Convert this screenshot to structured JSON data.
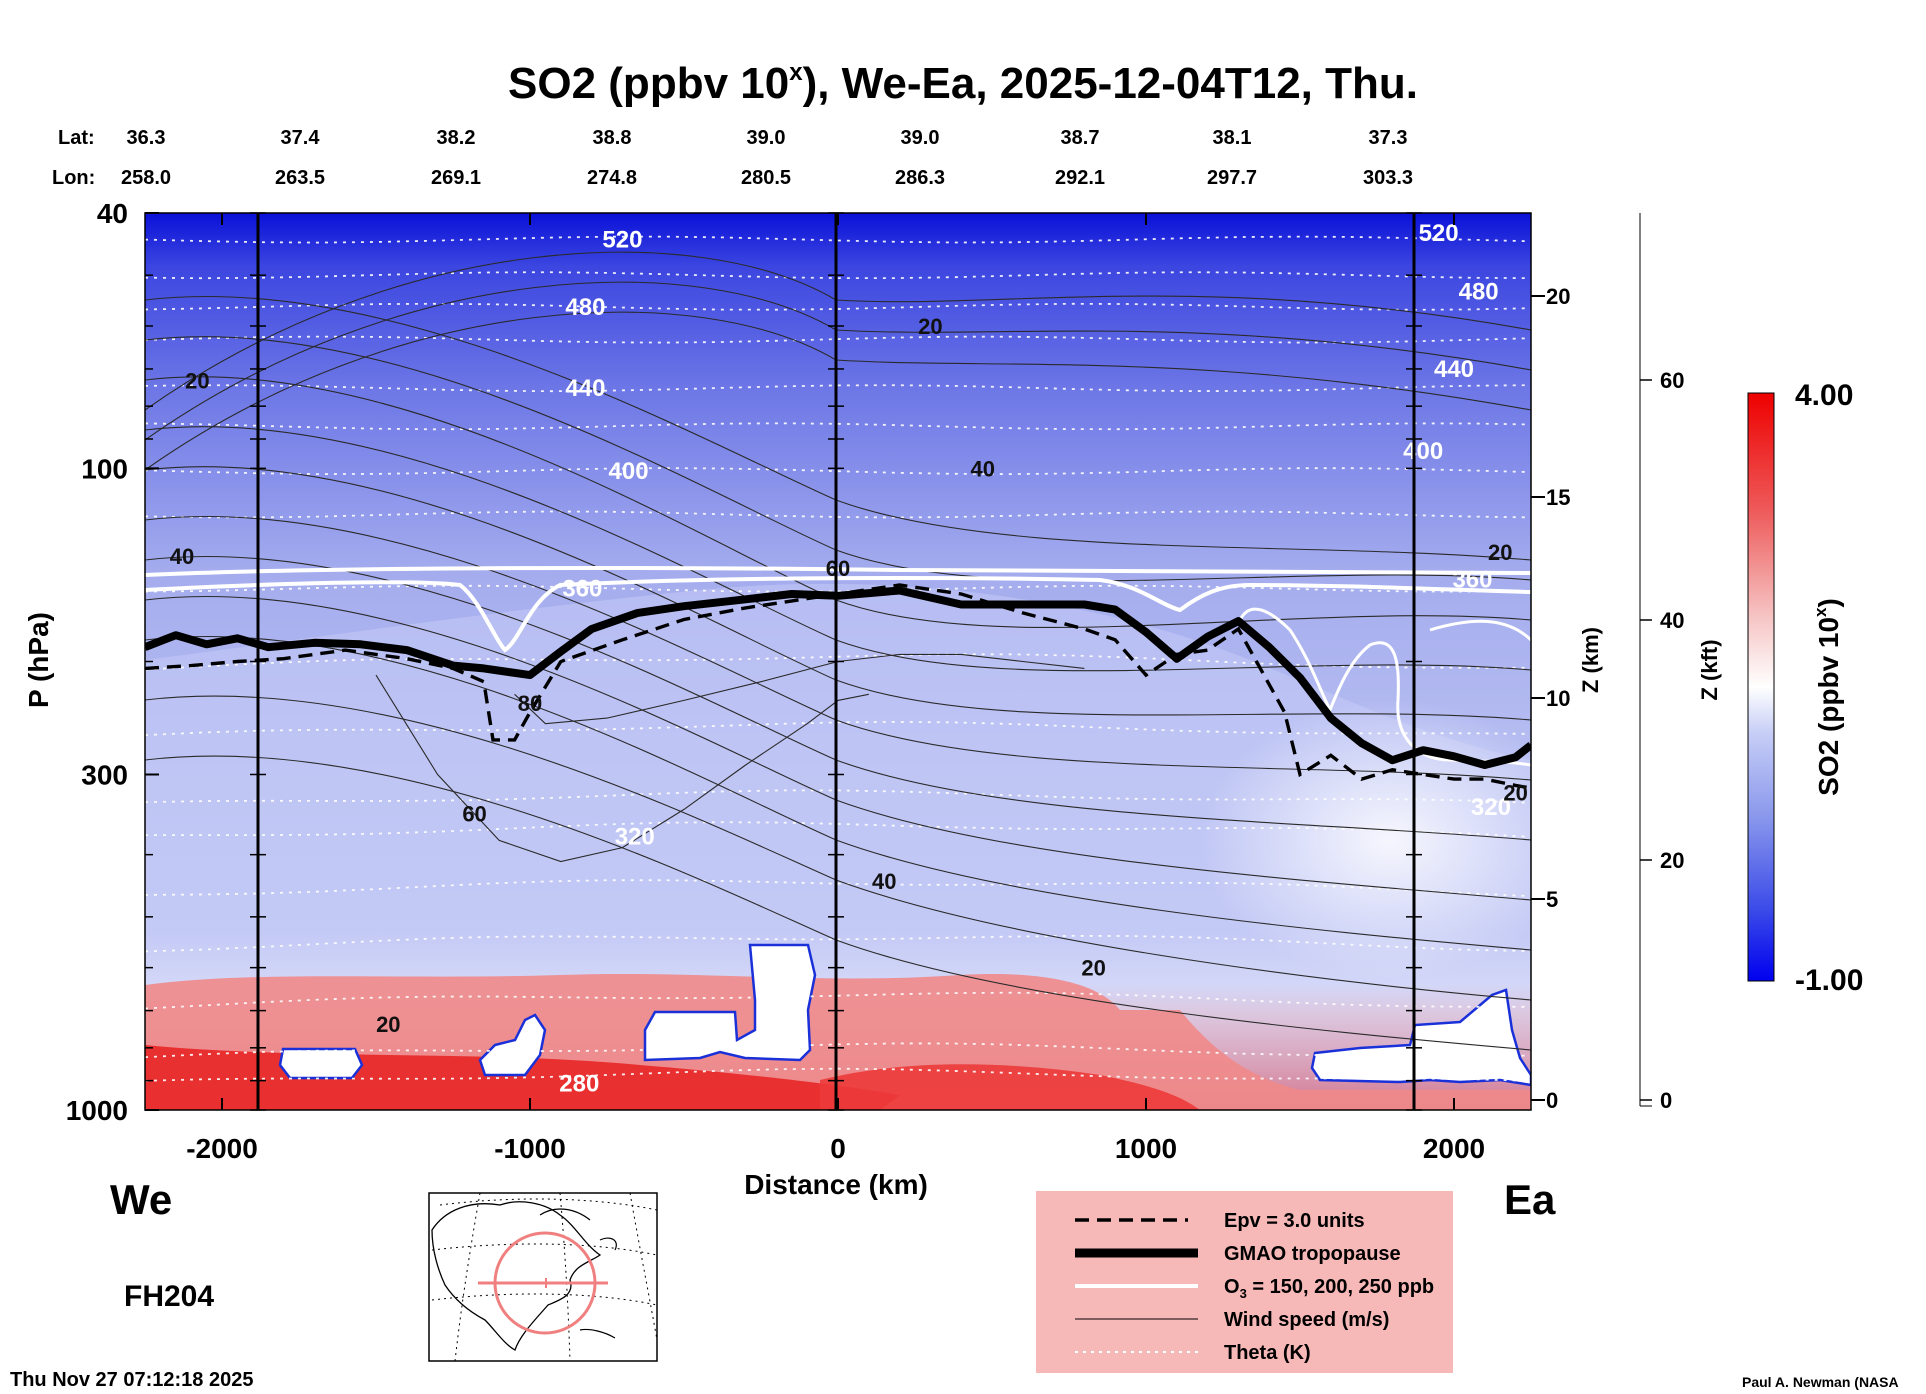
{
  "title_main": "SO2 (ppbv 10",
  "title_sup": "x",
  "title_rest": "), We-Ea, 2025-12-04T12, Thu.",
  "header": {
    "lat_label": "Lat:",
    "lon_label": "Lon:",
    "lats": [
      "36.3",
      "37.4",
      "38.2",
      "38.8",
      "39.0",
      "39.0",
      "38.7",
      "38.1",
      "37.3"
    ],
    "lons": [
      "258.0",
      "263.5",
      "269.1",
      "274.8",
      "280.5",
      "286.3",
      "292.1",
      "297.7",
      "303.3"
    ]
  },
  "direction_left": "We",
  "direction_right": "Ea",
  "forecast_hour": "FH204",
  "timestamp": "Thu Nov 27 07:12:18 2025",
  "credit": "Paul A. Newman (NASA",
  "chart_data": {
    "type": "heatmap",
    "title": "SO2 (ppbv 10^x), We-Ea, 2025-12-04T12, Thu.",
    "xlabel": "Distance (km)",
    "ylabel": "P (hPa)",
    "xlim": [
      -2250,
      2250
    ],
    "ylim": [
      1000,
      40
    ],
    "yscale": "log",
    "x_ticks": [
      -2000,
      -1000,
      0,
      1000,
      2000
    ],
    "x_tick_labels": [
      "-2000",
      "-1000",
      "0",
      "1000",
      "2000"
    ],
    "y_ticks": [
      40,
      100,
      300,
      1000
    ],
    "y_tick_labels": [
      "40",
      "100",
      "300",
      "1000"
    ],
    "z_km_label": "Z (km)",
    "z_km_ticks": [
      0,
      5,
      10,
      15,
      20
    ],
    "z_km_tick_labels": [
      "0",
      "5",
      "10",
      "15",
      "20"
    ],
    "z_kft_label": "Z (kft)",
    "z_kft_ticks": [
      0,
      20,
      40,
      60
    ],
    "z_kft_tick_labels": [
      "0",
      "20",
      "40",
      "60"
    ],
    "colorbar": {
      "label": "SO2 (ppbv 10",
      "label_sup": "x",
      "label_end": ")",
      "min": -1.0,
      "max": 4.0,
      "min_label": "-1.00",
      "max_label": "4.00",
      "colors": [
        "#0000ee",
        "#3a4ae8",
        "#8a98ec",
        "#c6cdf6",
        "#ffffff",
        "#f6b4b4",
        "#ee5a5a",
        "#ee0000"
      ]
    },
    "theta_levels": [
      {
        "label": "520",
        "x": -700,
        "p": 44
      },
      {
        "label": "520",
        "x": 1950,
        "p": 43
      },
      {
        "label": "480",
        "x": -820,
        "p": 56
      },
      {
        "label": "480",
        "x": 2080,
        "p": 53
      },
      {
        "label": "440",
        "x": -820,
        "p": 75
      },
      {
        "label": "440",
        "x": 2000,
        "p": 70
      },
      {
        "label": "400",
        "x": -680,
        "p": 101
      },
      {
        "label": "400",
        "x": 1900,
        "p": 94
      },
      {
        "label": "360",
        "x": -830,
        "p": 154
      },
      {
        "label": "360",
        "x": 2060,
        "p": 149
      },
      {
        "label": "320",
        "x": -660,
        "p": 375
      },
      {
        "label": "320",
        "x": 2120,
        "p": 337
      },
      {
        "label": "280",
        "x": -840,
        "p": 910
      }
    ],
    "wind_speed_labels": [
      {
        "label": "20",
        "x": -2080,
        "p": 73
      },
      {
        "label": "20",
        "x": 300,
        "p": 60
      },
      {
        "label": "20",
        "x": 830,
        "p": 600
      },
      {
        "label": "20",
        "x": -1460,
        "p": 735
      },
      {
        "label": "20",
        "x": 2150,
        "p": 135
      },
      {
        "label": "20",
        "x": 2200,
        "p": 320
      },
      {
        "label": "40",
        "x": -2130,
        "p": 137
      },
      {
        "label": "40",
        "x": 470,
        "p": 100
      },
      {
        "label": "40",
        "x": 150,
        "p": 440
      },
      {
        "label": "60",
        "x": -1180,
        "p": 345
      },
      {
        "label": "60",
        "x": 0,
        "p": 143
      },
      {
        "label": "80",
        "x": -1000,
        "p": 232
      }
    ],
    "gmao_tropopause": {
      "x": [
        -2250,
        -2150,
        -2050,
        -1950,
        -1850,
        -1700,
        -1550,
        -1400,
        -1250,
        -1150,
        -1000,
        -900,
        -800,
        -650,
        -500,
        -300,
        -150,
        0,
        200,
        400,
        600,
        800,
        900,
        1000,
        1100,
        1200,
        1300,
        1400,
        1500,
        1600,
        1700,
        1800,
        1900,
        2000,
        2100,
        2200,
        2250
      ],
      "p": [
        190,
        182,
        188,
        184,
        190,
        187,
        188,
        192,
        203,
        205,
        210,
        193,
        178,
        168,
        164,
        160,
        157,
        158,
        155,
        163,
        163,
        163,
        166,
        180,
        198,
        183,
        173,
        190,
        212,
        245,
        268,
        285,
        275,
        281,
        290,
        282,
        270
      ]
    },
    "epv_3_units": {
      "x": [
        -2250,
        -2100,
        -1950,
        -1800,
        -1600,
        -1400,
        -1250,
        -1150,
        -1120,
        -1050,
        -1000,
        -900,
        -700,
        -500,
        -300,
        0,
        200,
        400,
        600,
        800,
        900,
        1000,
        1100,
        1200,
        1300,
        1450,
        1500,
        1600,
        1700,
        1800,
        1900,
        2000,
        2100,
        2200,
        2250
      ],
      "p": [
        205,
        203,
        200,
        198,
        192,
        198,
        205,
        215,
        265,
        265,
        240,
        200,
        185,
        172,
        165,
        157,
        152,
        157,
        168,
        178,
        185,
        210,
        195,
        192,
        178,
        240,
        300,
        280,
        305,
        295,
        300,
        305,
        305,
        312,
        315
      ]
    },
    "wind_contours": [
      {
        "level": 60,
        "x": [
          -1500,
          -1300,
          -1100,
          -900,
          -700,
          -500,
          -300,
          -100,
          0,
          100
        ],
        "p": [
          210,
          300,
          380,
          410,
          390,
          340,
          290,
          250,
          230,
          225
        ]
      },
      {
        "level": 80,
        "x": [
          -1050,
          -950,
          -750,
          -500,
          -250,
          0,
          200,
          400,
          600,
          800
        ],
        "p": [
          225,
          250,
          245,
          230,
          215,
          200,
          195,
          195,
          200,
          205
        ]
      }
    ],
    "map_inset": "North America locator map with We-Ea section line"
  },
  "legend": {
    "epv": "Epv = 3.0 units",
    "tropopause": "GMAO tropopause",
    "ozone_pre": "O",
    "ozone_sub": "3",
    "ozone_post": " = 150, 200, 250 ppb",
    "wind": "Wind speed (m/s)",
    "theta": "Theta (K)"
  }
}
